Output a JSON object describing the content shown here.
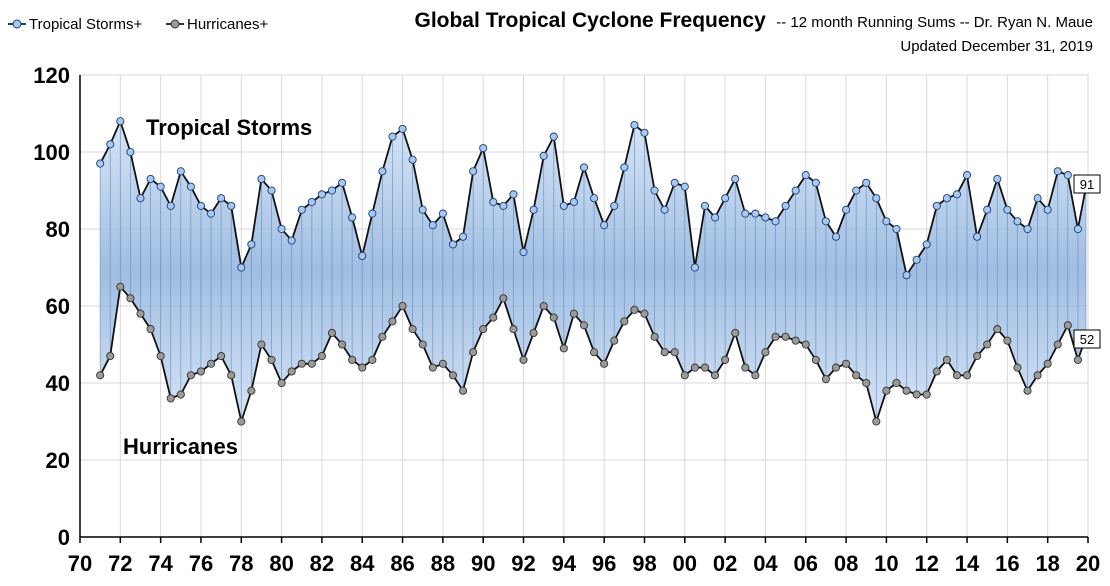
{
  "chart_data": {
    "type": "line",
    "title": "Global Tropical Cyclone Frequency",
    "title_suffix": "-- 12 month Running Sums -- Dr. Ryan N. Maue",
    "subtitle": "Updated December 31, 2019",
    "legend": [
      {
        "name": "Tropical Storms+",
        "color": "#a9c8ee"
      },
      {
        "name": "Hurricanes+",
        "color": "#9a9a9a"
      }
    ],
    "annotations": [
      {
        "text": "Tropical Storms",
        "series": 0
      },
      {
        "text": "Hurricanes",
        "series": 1
      }
    ],
    "ylim": [
      0,
      120
    ],
    "y_ticks": [
      0,
      20,
      40,
      60,
      80,
      100,
      120
    ],
    "xlim": [
      1970,
      2020
    ],
    "x_ticks": [
      1970,
      1972,
      1974,
      1976,
      1978,
      1980,
      1982,
      1984,
      1986,
      1988,
      1990,
      1992,
      1994,
      1996,
      1998,
      2000,
      2002,
      2004,
      2006,
      2008,
      2010,
      2012,
      2014,
      2016,
      2018,
      2020
    ],
    "x_tick_labels": [
      "70",
      "72",
      "74",
      "76",
      "78",
      "80",
      "82",
      "84",
      "86",
      "88",
      "90",
      "92",
      "94",
      "96",
      "98",
      "00",
      "02",
      "04",
      "06",
      "08",
      "10",
      "12",
      "14",
      "16",
      "18",
      "20"
    ],
    "grid": "vertical-and-horizontal",
    "legend_position": "top-left",
    "end_labels": [
      "91",
      "52"
    ],
    "series": [
      {
        "name": "Tropical Storms+",
        "x": [
          1971.0,
          1971.5,
          1972.0,
          1972.5,
          1973.0,
          1973.5,
          1974.0,
          1974.5,
          1975.0,
          1975.5,
          1976.0,
          1976.5,
          1977.0,
          1977.5,
          1978.0,
          1978.5,
          1979.0,
          1979.5,
          1980.0,
          1980.5,
          1981.0,
          1981.5,
          1982.0,
          1982.5,
          1983.0,
          1983.5,
          1984.0,
          1984.5,
          1985.0,
          1985.5,
          1986.0,
          1986.5,
          1987.0,
          1987.5,
          1988.0,
          1988.5,
          1989.0,
          1989.5,
          1990.0,
          1990.5,
          1991.0,
          1991.5,
          1992.0,
          1992.5,
          1993.0,
          1993.5,
          1994.0,
          1994.5,
          1995.0,
          1995.5,
          1996.0,
          1996.5,
          1997.0,
          1997.5,
          1998.0,
          1998.5,
          1999.0,
          1999.5,
          2000.0,
          2000.5,
          2001.0,
          2001.5,
          2002.0,
          2002.5,
          2003.0,
          2003.5,
          2004.0,
          2004.5,
          2005.0,
          2005.5,
          2006.0,
          2006.5,
          2007.0,
          2007.5,
          2008.0,
          2008.5,
          2009.0,
          2009.5,
          2010.0,
          2010.5,
          2011.0,
          2011.5,
          2012.0,
          2012.5,
          2013.0,
          2013.5,
          2014.0,
          2014.5,
          2015.0,
          2015.5,
          2016.0,
          2016.5,
          2017.0,
          2017.5,
          2018.0,
          2018.5,
          2019.0,
          2019.5,
          2019.9
        ],
        "values": [
          97,
          102,
          108,
          100,
          88,
          93,
          91,
          86,
          95,
          91,
          86,
          84,
          88,
          86,
          70,
          76,
          93,
          90,
          80,
          77,
          85,
          87,
          89,
          90,
          92,
          83,
          73,
          84,
          95,
          104,
          106,
          98,
          85,
          81,
          84,
          76,
          78,
          95,
          101,
          87,
          86,
          89,
          74,
          85,
          99,
          104,
          86,
          87,
          96,
          88,
          81,
          86,
          96,
          107,
          105,
          90,
          85,
          92,
          91,
          70,
          86,
          83,
          88,
          93,
          84,
          84,
          83,
          82,
          86,
          90,
          94,
          92,
          82,
          78,
          85,
          90,
          92,
          88,
          82,
          80,
          68,
          72,
          76,
          86,
          88,
          89,
          94,
          78,
          85,
          93,
          85,
          82,
          80,
          88,
          85,
          95,
          94,
          80,
          91
        ]
      },
      {
        "name": "Hurricanes+",
        "x": [
          1971.0,
          1971.5,
          1972.0,
          1972.5,
          1973.0,
          1973.5,
          1974.0,
          1974.5,
          1975.0,
          1975.5,
          1976.0,
          1976.5,
          1977.0,
          1977.5,
          1978.0,
          1978.5,
          1979.0,
          1979.5,
          1980.0,
          1980.5,
          1981.0,
          1981.5,
          1982.0,
          1982.5,
          1983.0,
          1983.5,
          1984.0,
          1984.5,
          1985.0,
          1985.5,
          1986.0,
          1986.5,
          1987.0,
          1987.5,
          1988.0,
          1988.5,
          1989.0,
          1989.5,
          1990.0,
          1990.5,
          1991.0,
          1991.5,
          1992.0,
          1992.5,
          1993.0,
          1993.5,
          1994.0,
          1994.5,
          1995.0,
          1995.5,
          1996.0,
          1996.5,
          1997.0,
          1997.5,
          1998.0,
          1998.5,
          1999.0,
          1999.5,
          2000.0,
          2000.5,
          2001.0,
          2001.5,
          2002.0,
          2002.5,
          2003.0,
          2003.5,
          2004.0,
          2004.5,
          2005.0,
          2005.5,
          2006.0,
          2006.5,
          2007.0,
          2007.5,
          2008.0,
          2008.5,
          2009.0,
          2009.5,
          2010.0,
          2010.5,
          2011.0,
          2011.5,
          2012.0,
          2012.5,
          2013.0,
          2013.5,
          2014.0,
          2014.5,
          2015.0,
          2015.5,
          2016.0,
          2016.5,
          2017.0,
          2017.5,
          2018.0,
          2018.5,
          2019.0,
          2019.5,
          2019.9
        ],
        "values": [
          42,
          47,
          65,
          62,
          58,
          54,
          47,
          36,
          37,
          42,
          43,
          45,
          47,
          42,
          30,
          38,
          50,
          46,
          40,
          43,
          45,
          45,
          47,
          53,
          50,
          46,
          44,
          46,
          52,
          56,
          60,
          54,
          50,
          44,
          45,
          42,
          38,
          48,
          54,
          57,
          62,
          54,
          46,
          53,
          60,
          57,
          49,
          58,
          55,
          48,
          45,
          51,
          56,
          59,
          58,
          52,
          48,
          48,
          42,
          44,
          44,
          42,
          46,
          53,
          44,
          42,
          48,
          52,
          52,
          51,
          50,
          46,
          41,
          44,
          45,
          42,
          40,
          30,
          38,
          40,
          38,
          37,
          37,
          43,
          46,
          42,
          42,
          47,
          50,
          54,
          51,
          44,
          38,
          42,
          45,
          50,
          55,
          46,
          52
        ]
      }
    ]
  }
}
